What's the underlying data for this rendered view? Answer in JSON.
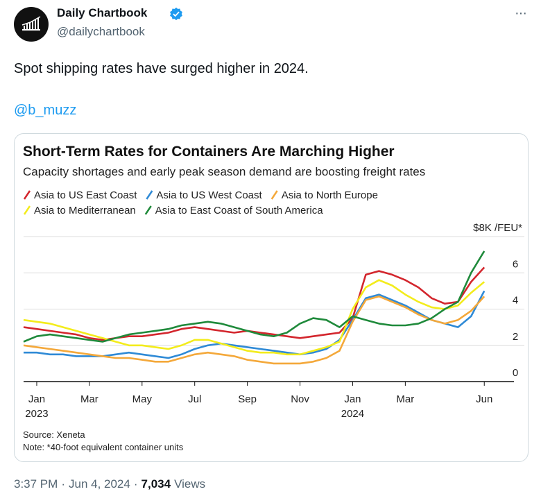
{
  "tweet": {
    "author": "Daily Chartbook",
    "handle": "@dailychartbook",
    "menu": "···",
    "text": "Spot shipping rates have surged higher in 2024.",
    "mention": "@b_muzz",
    "time": "3:37 PM",
    "separator": "·",
    "date": "Jun 4, 2024",
    "views": "7,034",
    "views_label": "Views"
  },
  "chart_data": {
    "type": "line",
    "title": "Short-Term Rates for Containers Are Marching Higher",
    "subtitle": "Capacity shortages and early peak season demand are boosting freight rates",
    "x": [
      -0.5,
      0,
      0.5,
      1,
      1.5,
      2,
      2.5,
      3,
      3.5,
      4,
      4.5,
      5,
      5.5,
      6,
      6.5,
      7,
      7.5,
      8,
      8.5,
      9,
      9.5,
      10,
      10.5,
      11,
      11.5,
      12,
      12.5,
      13,
      13.5,
      14,
      14.5,
      15,
      15.5,
      16,
      16.5,
      17
    ],
    "xlim": [
      -0.5,
      17.6
    ],
    "xticks": [
      {
        "value": 0,
        "label": "Jan"
      },
      {
        "value": 2,
        "label": "Mar"
      },
      {
        "value": 4,
        "label": "May"
      },
      {
        "value": 6,
        "label": "Jul"
      },
      {
        "value": 8,
        "label": "Sep"
      },
      {
        "value": 10,
        "label": "Nov"
      },
      {
        "value": 12,
        "label": "Jan"
      },
      {
        "value": 14,
        "label": "Mar"
      },
      {
        "value": 17,
        "label": "Jun"
      }
    ],
    "xtick_years": [
      {
        "value": 0,
        "label": "2023"
      },
      {
        "value": 12,
        "label": "2024"
      }
    ],
    "ylim": [
      0,
      8
    ],
    "yticks": [
      0,
      2,
      4,
      6,
      {
        "value": 8,
        "label": "$8K /FEU*"
      }
    ],
    "grid": true,
    "series": [
      {
        "name": "Asia to US East Coast",
        "color": "#d3262d",
        "values": [
          3.0,
          2.9,
          2.8,
          2.7,
          2.6,
          2.4,
          2.3,
          2.4,
          2.5,
          2.5,
          2.6,
          2.7,
          2.9,
          3.0,
          2.9,
          2.8,
          2.7,
          2.8,
          2.7,
          2.6,
          2.5,
          2.4,
          2.5,
          2.6,
          2.7,
          3.5,
          5.9,
          6.1,
          5.9,
          5.6,
          5.2,
          4.6,
          4.3,
          4.4,
          5.5,
          6.3
        ]
      },
      {
        "name": "Asia to US West Coast",
        "color": "#2f8ad6",
        "values": [
          1.6,
          1.6,
          1.5,
          1.5,
          1.4,
          1.4,
          1.4,
          1.5,
          1.6,
          1.5,
          1.4,
          1.3,
          1.5,
          1.8,
          2.0,
          2.1,
          2.0,
          1.9,
          1.8,
          1.7,
          1.6,
          1.5,
          1.6,
          1.8,
          2.3,
          3.4,
          4.6,
          4.8,
          4.5,
          4.2,
          3.8,
          3.4,
          3.2,
          3.0,
          3.6,
          5.0
        ]
      },
      {
        "name": "Asia to North Europe",
        "color": "#f4a83a",
        "values": [
          2.0,
          1.9,
          1.8,
          1.7,
          1.6,
          1.5,
          1.4,
          1.3,
          1.3,
          1.2,
          1.1,
          1.1,
          1.3,
          1.5,
          1.6,
          1.5,
          1.4,
          1.2,
          1.1,
          1.0,
          1.0,
          1.0,
          1.1,
          1.3,
          1.7,
          3.3,
          4.5,
          4.7,
          4.4,
          4.1,
          3.7,
          3.4,
          3.2,
          3.4,
          3.9,
          4.7
        ]
      },
      {
        "name": "Asia to Mediterranean",
        "color": "#f3ec1c",
        "values": [
          3.4,
          3.3,
          3.2,
          3.0,
          2.8,
          2.6,
          2.4,
          2.2,
          2.0,
          2.0,
          1.9,
          1.8,
          2.0,
          2.3,
          2.3,
          2.1,
          1.9,
          1.7,
          1.6,
          1.6,
          1.5,
          1.5,
          1.7,
          1.9,
          2.2,
          4.0,
          5.2,
          5.6,
          5.3,
          4.8,
          4.4,
          4.1,
          4.0,
          4.2,
          4.9,
          5.5
        ]
      },
      {
        "name": "Asia to East Coast of South America",
        "color": "#1f8a3b",
        "values": [
          2.2,
          2.5,
          2.6,
          2.5,
          2.4,
          2.3,
          2.2,
          2.4,
          2.6,
          2.7,
          2.8,
          2.9,
          3.1,
          3.2,
          3.3,
          3.2,
          3.0,
          2.8,
          2.6,
          2.5,
          2.7,
          3.2,
          3.5,
          3.4,
          3.0,
          3.6,
          3.4,
          3.2,
          3.1,
          3.1,
          3.2,
          3.5,
          4.0,
          4.4,
          6.0,
          7.2
        ]
      }
    ],
    "source": "Source: Xeneta",
    "note": "Note: *40-foot equivalent container units"
  }
}
